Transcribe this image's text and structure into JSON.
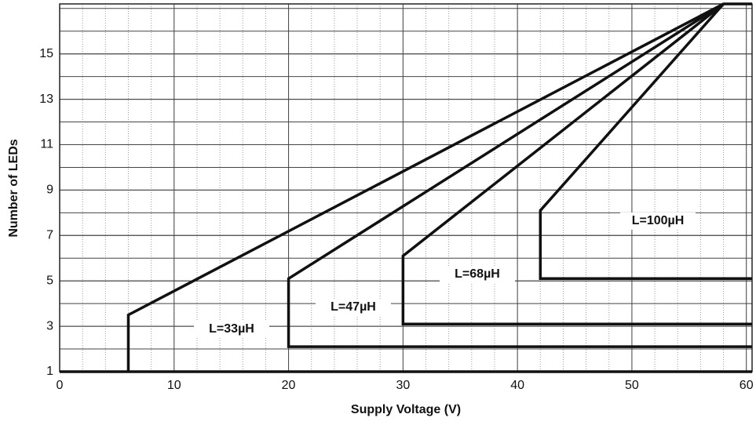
{
  "chart_data": {
    "type": "line",
    "xlabel": "Supply Voltage (V)",
    "ylabel": "Number of LEDs",
    "xlim": [
      0,
      60.5
    ],
    "ylim": [
      1,
      17.2
    ],
    "xticks": [
      0,
      10,
      20,
      30,
      40,
      50,
      60
    ],
    "yticks": [
      1,
      3,
      5,
      7,
      9,
      11,
      13,
      15
    ],
    "grid": true,
    "color": "#111111",
    "series": [
      {
        "name": "L=33µH",
        "x": [
          0,
          60.5,
          6,
          6,
          58,
          60.5
        ],
        "values": [
          1,
          1,
          1,
          3.5,
          17.2,
          17.2
        ]
      },
      {
        "name": "L=47µH",
        "x": [
          60.5,
          20,
          20,
          58
        ],
        "values": [
          2.1,
          2.1,
          5.1,
          17.2
        ]
      },
      {
        "name": "L=68µH",
        "x": [
          60.5,
          30,
          30,
          58
        ],
        "values": [
          3.1,
          3.1,
          6.1,
          17.2
        ]
      },
      {
        "name": "L=100µH",
        "x": [
          60.5,
          42,
          42,
          58
        ],
        "values": [
          5.1,
          5.1,
          8.1,
          17.2
        ]
      }
    ]
  }
}
